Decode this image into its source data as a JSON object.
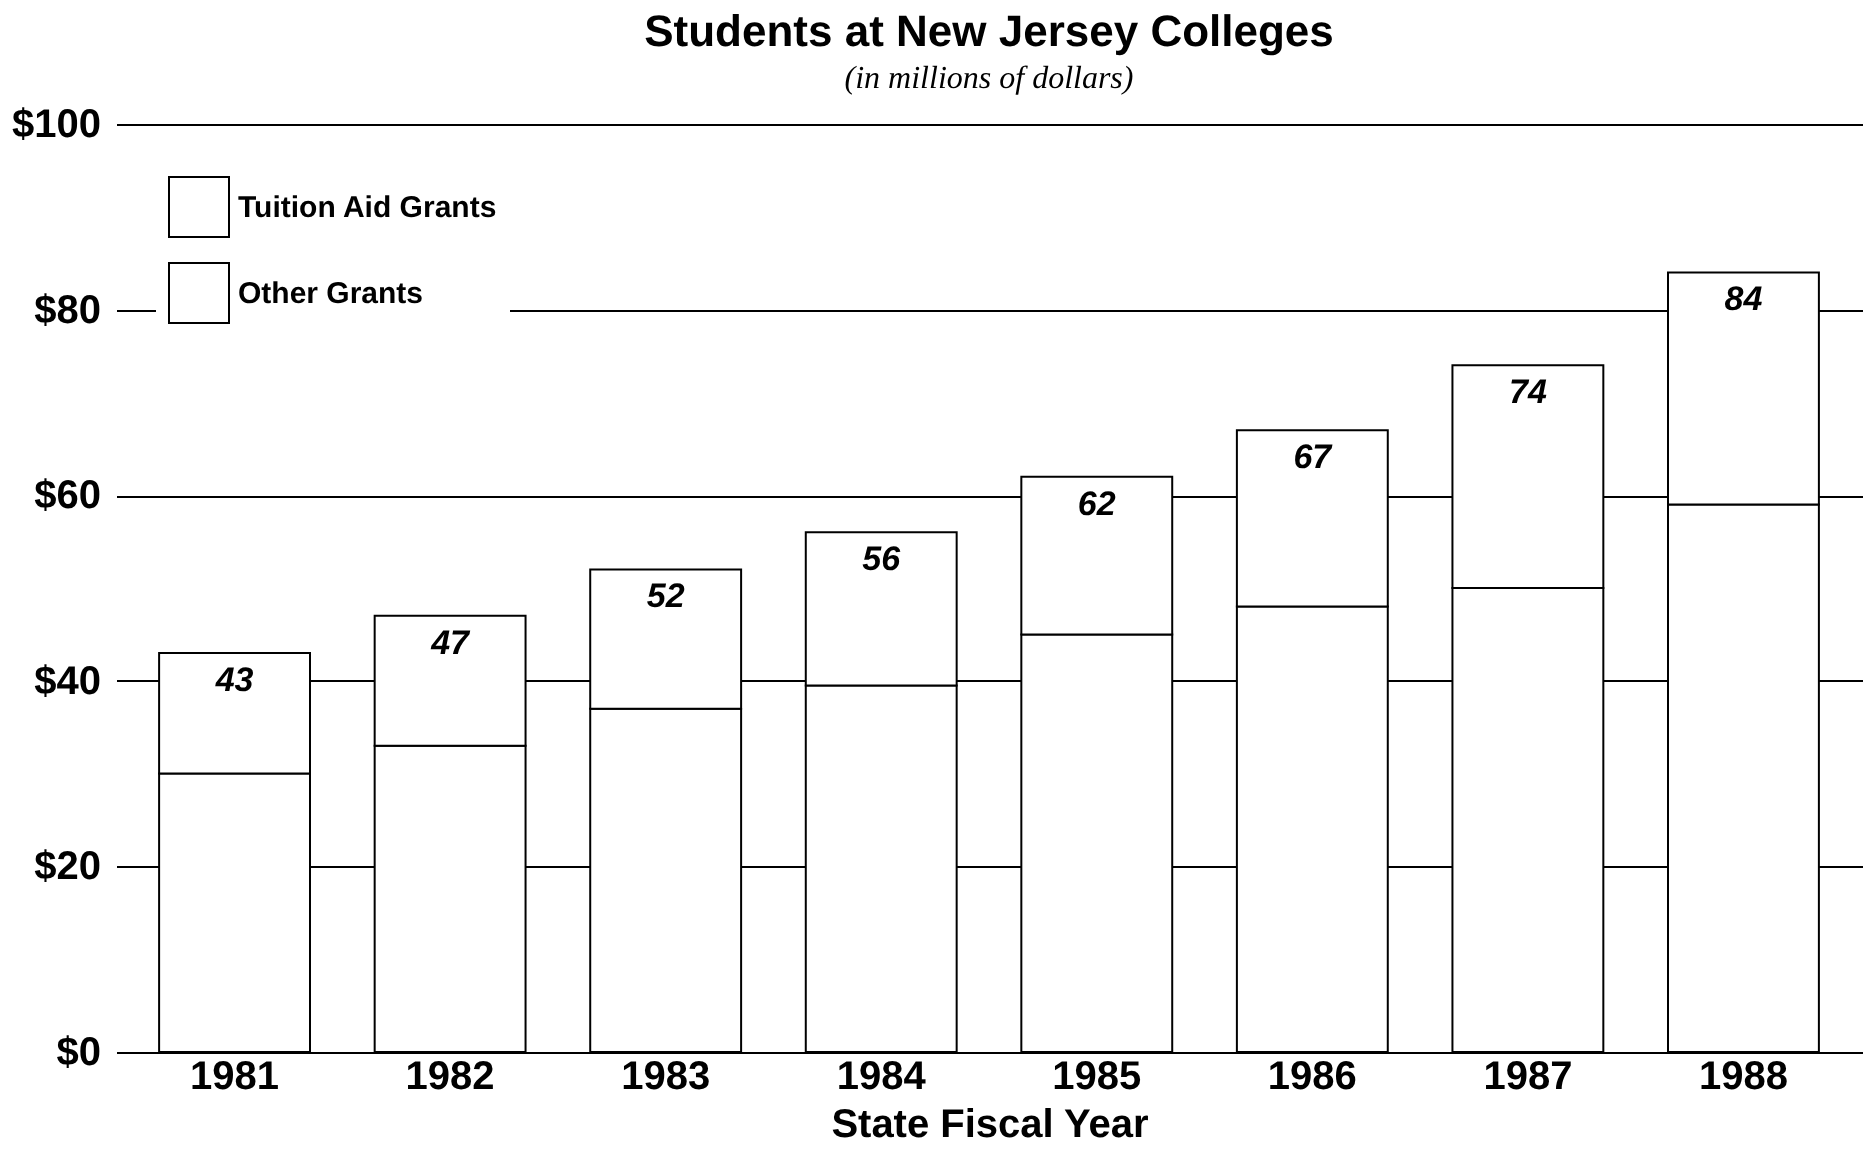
{
  "chart_data": {
    "type": "bar",
    "title": "Students at New Jersey Colleges",
    "subtitle": "(in millions of dollars)",
    "xlabel": "State Fiscal Year",
    "stacked": true,
    "categories": [
      "1981",
      "1982",
      "1983",
      "1984",
      "1985",
      "1986",
      "1987",
      "1988"
    ],
    "series": [
      {
        "name": "Tuition Aid Grants",
        "color": "#ffffff",
        "values": [
          30,
          33,
          37,
          39.5,
          45,
          48,
          50,
          59
        ]
      },
      {
        "name": "Other Grants",
        "color": "#ffffff",
        "values": [
          13,
          14,
          15,
          16.5,
          17,
          19,
          24,
          25
        ]
      }
    ],
    "totals": [
      "43",
      "47",
      "52",
      "56",
      "62",
      "67",
      "74",
      "84"
    ],
    "ylim": [
      0,
      100
    ],
    "yticks": [
      {
        "value": 0,
        "label": "$0"
      },
      {
        "value": 20,
        "label": "$20"
      },
      {
        "value": 40,
        "label": "$40"
      },
      {
        "value": 60,
        "label": "$60"
      },
      {
        "value": 80,
        "label": "$80"
      },
      {
        "value": 100,
        "label": "$100"
      }
    ],
    "grid": "y",
    "legend": "top left"
  }
}
